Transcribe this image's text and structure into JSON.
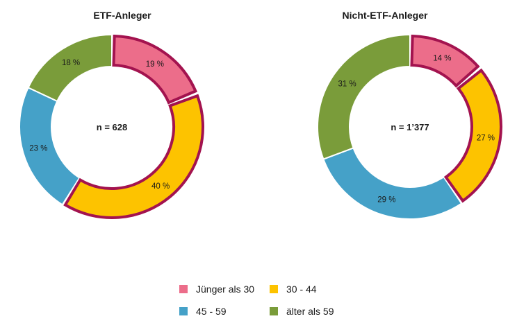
{
  "chart_data": [
    {
      "type": "pie",
      "variant": "donut",
      "title": "ETF-Anleger",
      "center_label": "n = 628",
      "categories": [
        "Jünger als 30",
        "30 - 44",
        "45 - 59",
        "älter als 59"
      ],
      "values": [
        19,
        40,
        23,
        18
      ],
      "value_labels": [
        "19 %",
        "40 %",
        "23 %",
        "18 %"
      ],
      "highlighted": [
        "Jünger als 30",
        "30 - 44"
      ]
    },
    {
      "type": "pie",
      "variant": "donut",
      "title": "Nicht-ETF-Anleger",
      "center_label": "n = 1’377",
      "categories": [
        "Jünger als 30",
        "30 - 44",
        "45 - 59",
        "älter als 59"
      ],
      "values": [
        14,
        27,
        29,
        31
      ],
      "value_labels": [
        "14 %",
        "27 %",
        "29 %",
        "31 %"
      ],
      "highlighted": [
        "Jünger als 30",
        "30 - 44"
      ]
    }
  ],
  "legend": {
    "items": [
      {
        "label": "Jünger als 30",
        "color": "#ec6d8a"
      },
      {
        "label": "30 - 44",
        "color": "#fdc300"
      },
      {
        "label": "45 - 59",
        "color": "#45a1c8"
      },
      {
        "label": "älter als 59",
        "color": "#7a9c3a"
      }
    ]
  },
  "colors": {
    "highlight_border": "#a3134f",
    "separator": "#ffffff"
  }
}
